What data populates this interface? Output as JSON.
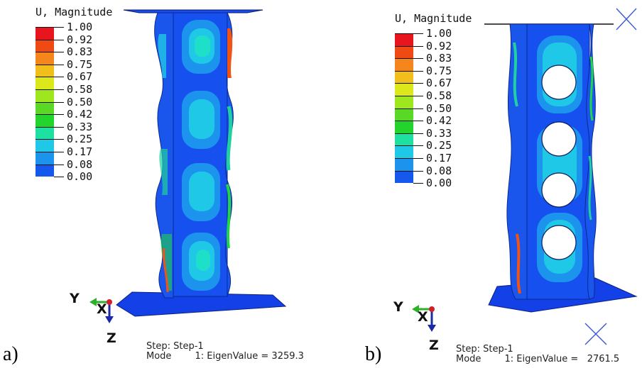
{
  "legend_title": "U, Magnitude",
  "legend_values": [
    "1.00",
    "0.92",
    "0.83",
    "0.75",
    "0.67",
    "0.58",
    "0.50",
    "0.42",
    "0.33",
    "0.25",
    "0.17",
    "0.08",
    "0.00"
  ],
  "legend_colors": [
    "#e8141e",
    "#f04a14",
    "#f5861c",
    "#f2be1c",
    "#dce81a",
    "#9ee61e",
    "#5ad826",
    "#22d42c",
    "#1ee0a0",
    "#1ec8e6",
    "#1c94ee",
    "#1458ee",
    "#0a28ee"
  ],
  "panels": [
    {
      "label": "a)",
      "step_line": "Step: Step-1",
      "mode_line": "Mode        1: EigenValue = 3259.3"
    },
    {
      "label": "b)",
      "step_line": "Step: Step-1",
      "mode_line": "Mode        1: EigenValue =   2761.5"
    }
  ],
  "triad": {
    "y": "Y",
    "x": "X",
    "z": "Z"
  }
}
